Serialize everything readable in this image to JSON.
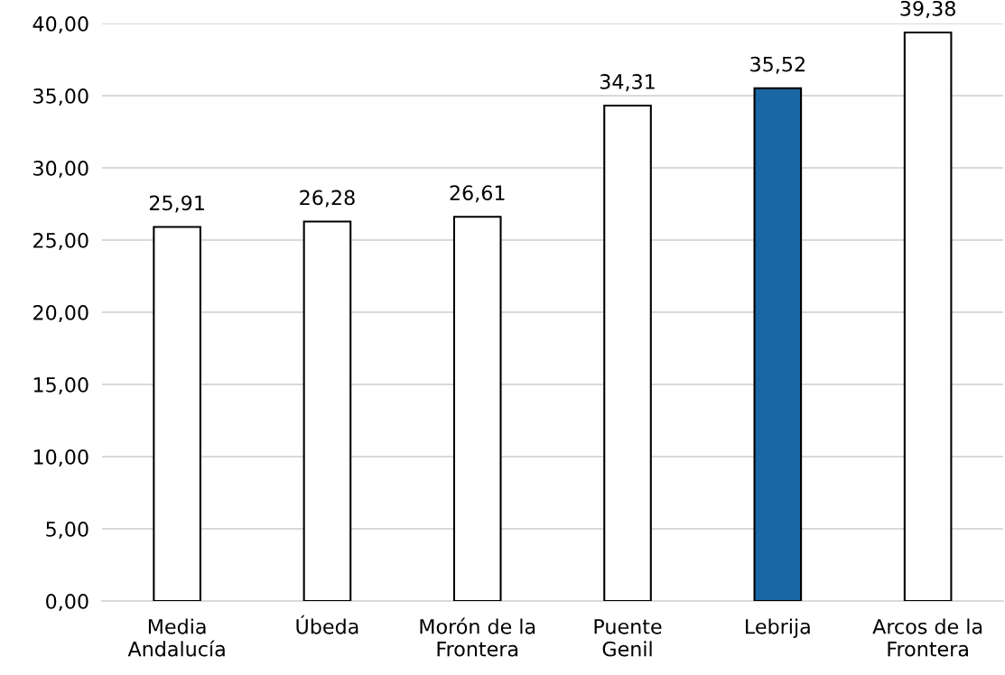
{
  "chart_data": {
    "type": "bar",
    "categories": [
      "Media\nAndalucía",
      "Úbeda",
      "Morón de la\nFrontera",
      "Puente\nGenil",
      "Lebrija",
      "Arcos de la\nFrontera"
    ],
    "values": [
      25.91,
      26.28,
      26.61,
      34.31,
      35.52,
      39.38
    ],
    "colors": [
      "#ffffff",
      "#ffffff",
      "#ffffff",
      "#ffffff",
      "#1a67a3",
      "#ffffff"
    ],
    "value_labels": [
      "25,91",
      "26,28",
      "26,61",
      "34,31",
      "35,52",
      "39,38"
    ],
    "ylim": [
      0,
      40
    ],
    "yticks": [
      {
        "value": 0,
        "label": "0,00"
      },
      {
        "value": 5,
        "label": "5,00"
      },
      {
        "value": 10,
        "label": "10,00"
      },
      {
        "value": 15,
        "label": "15,00"
      },
      {
        "value": 20,
        "label": "20,00"
      },
      {
        "value": 25,
        "label": "25,00"
      },
      {
        "value": 30,
        "label": "30,00"
      },
      {
        "value": 35,
        "label": "35,00"
      },
      {
        "value": 40,
        "label": "40,00"
      }
    ],
    "grid": "y",
    "legend": false
  }
}
